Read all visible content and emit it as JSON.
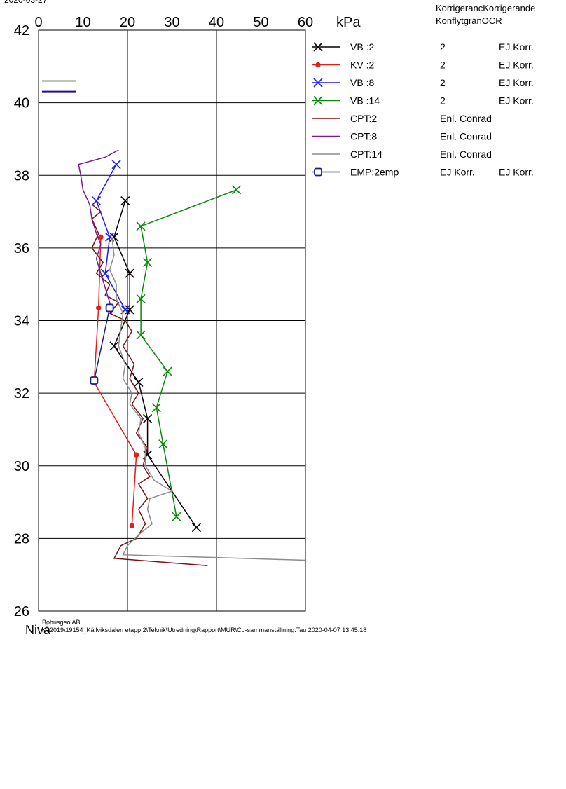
{
  "date_stamp": "2020-03-27",
  "chart_data": {
    "type": "line",
    "xlabel": "kPa",
    "ylabel": "Nivå",
    "xlim": [
      0,
      60
    ],
    "ylim": [
      26,
      42
    ],
    "x_ticks": [
      "0",
      "10",
      "20",
      "30",
      "40",
      "50",
      "60"
    ],
    "y_ticks": [
      "26",
      "28",
      "30",
      "32",
      "34",
      "36",
      "38",
      "40",
      "42"
    ],
    "grid": true,
    "legend_position": "right",
    "legend_headers": [
      "Korrigerande Konflytgräns",
      "Korrigerande OCR"
    ],
    "legend_header_line1": "KorrigeranсKorrigerande",
    "legend_header_line2": "KonflytgränOCR",
    "footer_company": "Bohusgeo AB",
    "footer_path": "K:\\2019\\19154_Källviksdalen etapp 2\\Teknik\\Utredning\\Rapport\\MUR\\Cu-sammanställning.Tau 2020-04-07 13:45:18",
    "series": [
      {
        "name": "VB :2",
        "marker": "x",
        "color": "#000000",
        "col1": "2",
        "col2": "EJ Korr.",
        "points": [
          [
            19.5,
            37.3
          ],
          [
            17,
            36.3
          ],
          [
            20.5,
            35.3
          ],
          [
            20.5,
            34.3
          ],
          [
            17,
            33.3
          ],
          [
            22.5,
            32.3
          ],
          [
            24.5,
            31.3
          ],
          [
            24.5,
            30.3
          ],
          [
            35.5,
            28.3
          ]
        ]
      },
      {
        "name": "KV :2",
        "marker": "dot",
        "color": "#e0201b",
        "col1": "2",
        "col2": "EJ Korr.",
        "points": [
          [
            14,
            36.3
          ],
          [
            13.5,
            34.35
          ],
          [
            12.5,
            32.3
          ],
          [
            22,
            30.3
          ],
          [
            21,
            28.35
          ]
        ]
      },
      {
        "name": "VB :8",
        "marker": "x",
        "color": "#1a1aff",
        "col1": "2",
        "col2": "EJ Korr.",
        "points": [
          [
            17.5,
            38.3
          ],
          [
            13,
            37.3
          ],
          [
            16,
            36.3
          ],
          [
            15,
            35.3
          ],
          [
            19.5,
            34.3
          ]
        ]
      },
      {
        "name": "VB :14",
        "marker": "x",
        "color": "#0a8a0a",
        "col1": "2",
        "col2": "EJ Korr.",
        "points": [
          [
            44.5,
            37.6
          ],
          [
            23,
            36.6
          ],
          [
            24.5,
            35.6
          ],
          [
            23,
            34.6
          ],
          [
            23,
            33.6
          ],
          [
            29,
            32.6
          ],
          [
            26.5,
            31.6
          ],
          [
            28,
            30.6
          ],
          [
            31,
            28.6
          ]
        ]
      },
      {
        "name": "CPT:2",
        "marker": "none",
        "color": "#7a1010",
        "col1": "Enl. Conrad",
        "col2": "",
        "points": [
          [
            38,
            27.25
          ],
          [
            17,
            27.45
          ],
          [
            18.5,
            27.8
          ],
          [
            22,
            28
          ],
          [
            24,
            28.4
          ],
          [
            22.5,
            28.8
          ],
          [
            24.5,
            29.1
          ],
          [
            22.5,
            29.5
          ],
          [
            25,
            29.7
          ],
          [
            23.5,
            30
          ],
          [
            24.5,
            30.5
          ],
          [
            22,
            30.9
          ],
          [
            23.5,
            31.3
          ],
          [
            21,
            31.7
          ],
          [
            22.5,
            32
          ],
          [
            20.5,
            32.4
          ],
          [
            21.5,
            32.8
          ],
          [
            19,
            33.3
          ],
          [
            21,
            33.7
          ],
          [
            19.5,
            34
          ],
          [
            16,
            34.2
          ],
          [
            18,
            34.5
          ],
          [
            15,
            34.7
          ],
          [
            16,
            35
          ],
          [
            13,
            35.3
          ],
          [
            14.5,
            35.6
          ],
          [
            12,
            36
          ],
          [
            13.5,
            36.4
          ],
          [
            12,
            36.8
          ],
          [
            14,
            37
          ],
          [
            12,
            37.2
          ]
        ]
      },
      {
        "name": "CPT:8",
        "marker": "none",
        "color": "#7a1a8a",
        "col1": "Enl. Conrad",
        "col2": "",
        "points": [
          [
            18,
            38.7
          ],
          [
            15,
            38.5
          ],
          [
            9,
            38.3
          ],
          [
            9.5,
            38
          ],
          [
            10,
            37.6
          ],
          [
            11.5,
            37.2
          ],
          [
            12,
            36.8
          ],
          [
            13,
            36.4
          ],
          [
            14,
            36.1
          ],
          [
            13,
            35.7
          ],
          [
            14,
            35.3
          ],
          [
            15,
            34.9
          ],
          [
            16,
            34.5
          ],
          [
            16.5,
            34.2
          ]
        ]
      },
      {
        "name": "CPT:14",
        "marker": "none",
        "color": "#8c8c8c",
        "col1": "Enl. Conrad",
        "col2": "",
        "points": [
          [
            60,
            27.4
          ],
          [
            19,
            27.55
          ],
          [
            20,
            27.8
          ],
          [
            22.5,
            28.1
          ],
          [
            25.5,
            28.4
          ],
          [
            24.5,
            28.8
          ],
          [
            25,
            29.1
          ],
          [
            30,
            29.3
          ],
          [
            26,
            29.6
          ],
          [
            24,
            30
          ],
          [
            24,
            30.5
          ],
          [
            22.5,
            30.9
          ],
          [
            23,
            31.3
          ],
          [
            20.5,
            31.7
          ],
          [
            21,
            32
          ],
          [
            19,
            32.4
          ],
          [
            19.5,
            32.8
          ],
          [
            18,
            33.3
          ],
          [
            18.5,
            33.8
          ],
          [
            19,
            34.2
          ],
          [
            17.5,
            34.6
          ],
          [
            17.5,
            35
          ],
          [
            16,
            35.4
          ],
          [
            17,
            35.8
          ],
          [
            16.5,
            36.3
          ]
        ]
      },
      {
        "name": "EMP:2emp",
        "marker": "square",
        "color": "#1a1a9a",
        "col1": "EJ Korr.",
        "col2": "EJ Korr.",
        "points": [
          [
            16,
            34.35
          ],
          [
            12.5,
            32.35
          ]
        ]
      }
    ],
    "extra_legend_lines": [
      {
        "color": "#7a8a7a"
      },
      {
        "color": "#2a0a8a"
      }
    ]
  }
}
